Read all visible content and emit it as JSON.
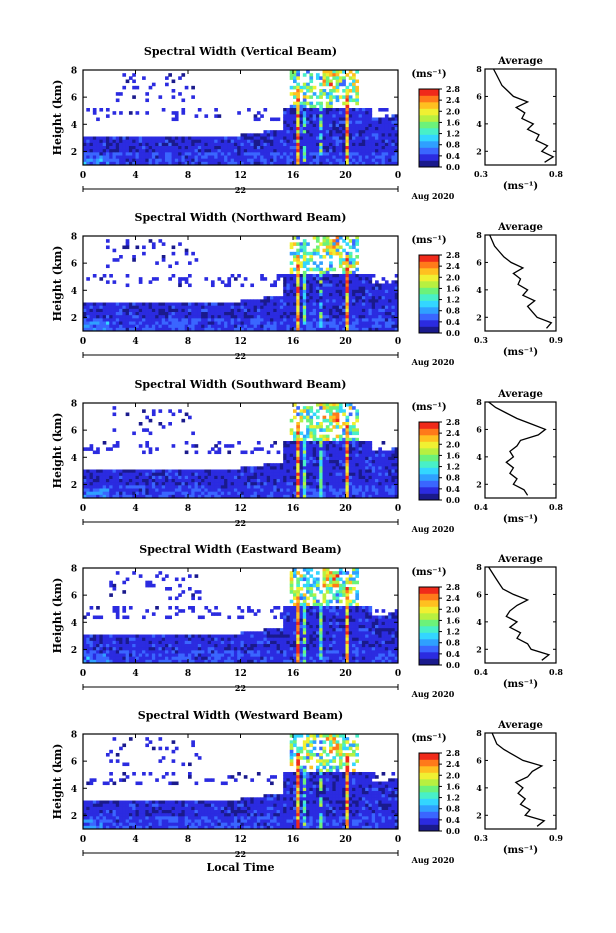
{
  "colorbar": {
    "unit": "(ms⁻¹)",
    "ticks": [
      "0.0",
      "0.4",
      "0.8",
      "1.2",
      "1.6",
      "2.0",
      "2.4",
      "2.8"
    ],
    "colors": [
      "#1a1a8c",
      "#2b2be0",
      "#3a66ff",
      "#2fa0ff",
      "#33d6ff",
      "#48f0c8",
      "#6cf27a",
      "#b8f040",
      "#f0f032",
      "#ffc020",
      "#ff7a1a",
      "#f02a1a"
    ]
  },
  "x_axis": {
    "ticks": [
      "0",
      "4",
      "8",
      "12",
      "16",
      "20",
      "0"
    ],
    "date_label": "22",
    "month_label": "Aug 2020",
    "title": "Local Time"
  },
  "y_axis": {
    "label": "Height (km)",
    "ticks": [
      "2",
      "4",
      "6",
      "8"
    ]
  },
  "profile_axis": {
    "title": "Average",
    "unit": "(ms⁻¹)",
    "yticks": [
      "2",
      "4",
      "6",
      "8"
    ]
  },
  "chart_data": [
    {
      "type": "heatmap",
      "title": "Spectral Width (Vertical Beam)",
      "xlabel": "",
      "ylabel": "Height (km)",
      "xlim": [
        0,
        24
      ],
      "ylim": [
        1,
        8
      ],
      "zlim": [
        0.0,
        2.8
      ],
      "profile": {
        "xlim": [
          0.3,
          0.8
        ],
        "xticks": [
          "0.3",
          "0.8"
        ],
        "points": [
          [
            0.72,
            1.2
          ],
          [
            0.78,
            1.6
          ],
          [
            0.7,
            2.0
          ],
          [
            0.74,
            2.4
          ],
          [
            0.66,
            2.8
          ],
          [
            0.68,
            3.2
          ],
          [
            0.6,
            3.6
          ],
          [
            0.64,
            4.0
          ],
          [
            0.56,
            4.4
          ],
          [
            0.58,
            4.8
          ],
          [
            0.52,
            5.2
          ],
          [
            0.6,
            5.6
          ],
          [
            0.5,
            6.0
          ],
          [
            0.46,
            6.4
          ],
          [
            0.42,
            6.8
          ],
          [
            0.4,
            7.2
          ],
          [
            0.38,
            7.6
          ],
          [
            0.36,
            8.0
          ]
        ]
      }
    },
    {
      "type": "heatmap",
      "title": "Spectral Width (Northward Beam)",
      "xlabel": "",
      "ylabel": "Height (km)",
      "xlim": [
        0,
        24
      ],
      "ylim": [
        1,
        8
      ],
      "zlim": [
        0.0,
        2.8
      ],
      "profile": {
        "xlim": [
          0.3,
          0.9
        ],
        "xticks": [
          "0.3",
          "0.9"
        ],
        "points": [
          [
            0.82,
            1.2
          ],
          [
            0.86,
            1.6
          ],
          [
            0.74,
            2.0
          ],
          [
            0.7,
            2.4
          ],
          [
            0.66,
            2.8
          ],
          [
            0.72,
            3.2
          ],
          [
            0.62,
            3.6
          ],
          [
            0.66,
            4.0
          ],
          [
            0.58,
            4.4
          ],
          [
            0.6,
            4.8
          ],
          [
            0.54,
            5.2
          ],
          [
            0.62,
            5.6
          ],
          [
            0.52,
            6.0
          ],
          [
            0.46,
            6.4
          ],
          [
            0.42,
            6.8
          ],
          [
            0.38,
            7.2
          ],
          [
            0.36,
            7.6
          ],
          [
            0.34,
            8.0
          ]
        ]
      }
    },
    {
      "type": "heatmap",
      "title": "Spectral Width (Southward Beam)",
      "xlabel": "",
      "ylabel": "Height (km)",
      "xlim": [
        0,
        24
      ],
      "ylim": [
        1,
        8
      ],
      "zlim": [
        0.0,
        2.8
      ],
      "profile": {
        "xlim": [
          0.4,
          0.8
        ],
        "xticks": [
          "0.4",
          "0.8"
        ],
        "points": [
          [
            0.64,
            1.2
          ],
          [
            0.62,
            1.6
          ],
          [
            0.56,
            2.0
          ],
          [
            0.58,
            2.4
          ],
          [
            0.54,
            2.8
          ],
          [
            0.56,
            3.2
          ],
          [
            0.52,
            3.6
          ],
          [
            0.56,
            4.0
          ],
          [
            0.54,
            4.4
          ],
          [
            0.58,
            4.8
          ],
          [
            0.6,
            5.2
          ],
          [
            0.7,
            5.6
          ],
          [
            0.74,
            6.0
          ],
          [
            0.66,
            6.4
          ],
          [
            0.58,
            6.8
          ],
          [
            0.52,
            7.2
          ],
          [
            0.46,
            7.6
          ],
          [
            0.42,
            8.0
          ]
        ]
      }
    },
    {
      "type": "heatmap",
      "title": "Spectral Width (Eastward Beam)",
      "xlabel": "",
      "ylabel": "Height (km)",
      "xlim": [
        0,
        24
      ],
      "ylim": [
        1,
        8
      ],
      "zlim": [
        0.0,
        2.8
      ],
      "profile": {
        "xlim": [
          0.4,
          0.8
        ],
        "xticks": [
          "0.4",
          "0.8"
        ],
        "points": [
          [
            0.72,
            1.2
          ],
          [
            0.76,
            1.6
          ],
          [
            0.66,
            2.0
          ],
          [
            0.64,
            2.4
          ],
          [
            0.58,
            2.8
          ],
          [
            0.6,
            3.2
          ],
          [
            0.54,
            3.6
          ],
          [
            0.58,
            4.0
          ],
          [
            0.52,
            4.4
          ],
          [
            0.54,
            4.8
          ],
          [
            0.58,
            5.2
          ],
          [
            0.64,
            5.6
          ],
          [
            0.56,
            6.0
          ],
          [
            0.5,
            6.4
          ],
          [
            0.48,
            6.8
          ],
          [
            0.46,
            7.2
          ],
          [
            0.44,
            7.6
          ],
          [
            0.42,
            8.0
          ]
        ]
      }
    },
    {
      "type": "heatmap",
      "title": "Spectral Width (Westward Beam)",
      "xlabel": "Local Time",
      "ylabel": "Height (km)",
      "xlim": [
        0,
        24
      ],
      "ylim": [
        1,
        8
      ],
      "zlim": [
        0.0,
        2.8
      ],
      "profile": {
        "xlim": [
          0.3,
          0.9
        ],
        "xticks": [
          "0.3",
          "0.9"
        ],
        "points": [
          [
            0.74,
            1.2
          ],
          [
            0.8,
            1.6
          ],
          [
            0.64,
            2.0
          ],
          [
            0.68,
            2.4
          ],
          [
            0.6,
            2.8
          ],
          [
            0.64,
            3.2
          ],
          [
            0.58,
            3.6
          ],
          [
            0.62,
            4.0
          ],
          [
            0.56,
            4.4
          ],
          [
            0.66,
            4.8
          ],
          [
            0.7,
            5.2
          ],
          [
            0.78,
            5.6
          ],
          [
            0.62,
            6.0
          ],
          [
            0.54,
            6.4
          ],
          [
            0.46,
            6.8
          ],
          [
            0.4,
            7.2
          ],
          [
            0.38,
            7.6
          ],
          [
            0.36,
            8.0
          ]
        ]
      }
    }
  ]
}
